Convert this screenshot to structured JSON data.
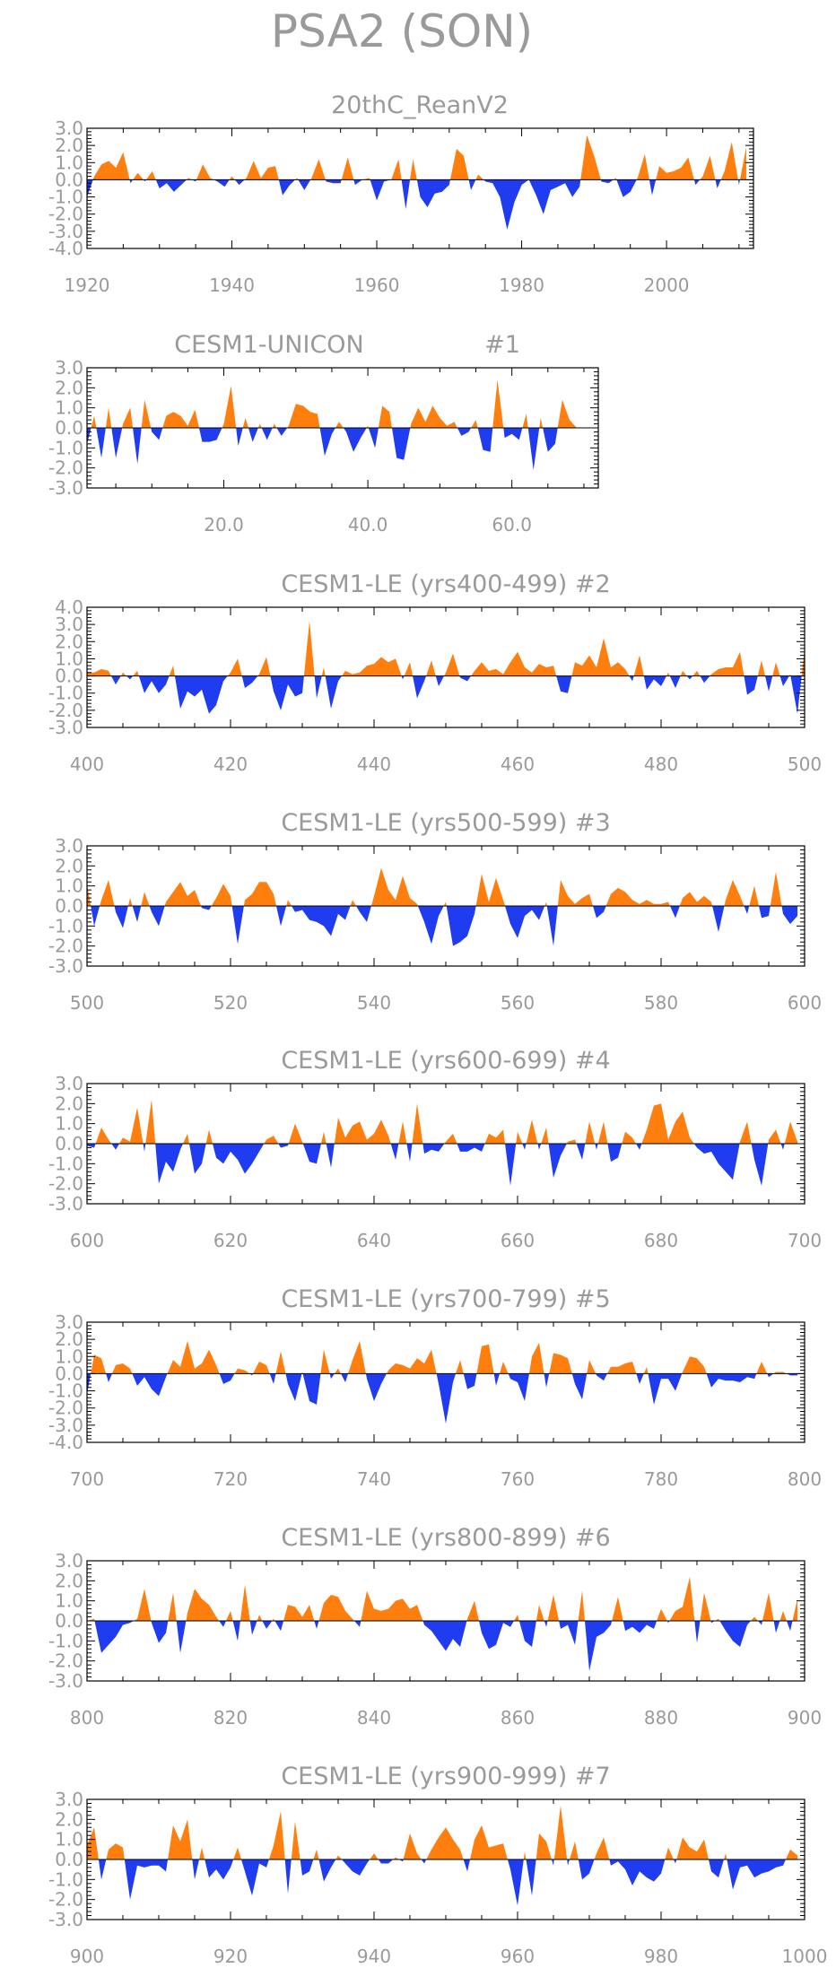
{
  "main_title": "PSA2 (SON)",
  "colors": {
    "positive": "#ff7f0e",
    "negative": "#1f3cf0",
    "text": "#9a9a9a",
    "axis": "#000000"
  },
  "chart_data": [
    {
      "type": "area",
      "title": "20thC_ReanV2",
      "xlim": [
        1920,
        2012
      ],
      "ylim": [
        -4,
        3
      ],
      "yticks": [
        3,
        2,
        1,
        0,
        -1,
        -2,
        -3,
        -4
      ],
      "ytick_labels": [
        "3.0",
        "2.0",
        "1.0",
        "0.0",
        "-1.0",
        "-2.0",
        "-3.0",
        "-4.0"
      ],
      "xticks": [
        1920,
        1940,
        1960,
        1980,
        2000
      ],
      "xtick_labels": [
        "1920",
        "1940",
        "1960",
        "1980",
        "2000"
      ],
      "x_start": 1920,
      "values": [
        -1.0,
        0.2,
        0.9,
        1.1,
        0.7,
        1.6,
        -0.2,
        0.4,
        -0.1,
        0.5,
        -0.5,
        -0.2,
        -0.7,
        -0.3,
        0.1,
        -0.1,
        0.9,
        0.1,
        -0.1,
        -0.4,
        0.2,
        -0.3,
        0.1,
        1.1,
        0.1,
        0.7,
        0.8,
        -0.9,
        -0.3,
        0.1,
        -0.6,
        0.1,
        1.2,
        -0.1,
        -0.2,
        -0.2,
        1.3,
        -0.3,
        0.0,
        0.1,
        -1.2,
        -0.1,
        0.0,
        1.2,
        -1.7,
        1.2,
        -1.0,
        -1.6,
        -0.8,
        -0.7,
        -0.3,
        1.8,
        1.4,
        -0.6,
        0.3,
        -0.1,
        -0.2,
        -1.0,
        -2.9,
        -1.3,
        -0.3,
        0.0,
        -0.9,
        -2.0,
        -0.6,
        -0.4,
        -0.2,
        -1.0,
        -0.4,
        2.6,
        1.4,
        -0.1,
        -0.2,
        0.1,
        -1.0,
        -0.7,
        0.1,
        1.5,
        -0.9,
        0.8,
        0.4,
        0.5,
        0.7,
        1.3,
        -0.3,
        0.2,
        1.4,
        -0.5,
        0.5,
        2.2,
        -0.3,
        1.9
      ]
    },
    {
      "type": "area",
      "title": "CESM1-UNICON",
      "tag": "#1",
      "xlim": [
        1,
        72
      ],
      "ylim": [
        -3,
        3
      ],
      "yticks": [
        3,
        2,
        1,
        0,
        -1,
        -2,
        -3
      ],
      "ytick_labels": [
        "3.0",
        "2.0",
        "1.0",
        "0.0",
        "-1.0",
        "-2.0",
        "-3.0"
      ],
      "xticks": [
        20,
        40,
        60
      ],
      "xtick_labels": [
        "20.0",
        "40.0",
        "60.0"
      ],
      "x_start": 1,
      "values": [
        -0.8,
        0.6,
        -1.5,
        1.0,
        -1.5,
        0.2,
        1.0,
        -1.8,
        1.4,
        -0.2,
        -0.6,
        0.6,
        0.8,
        0.6,
        0.1,
        0.9,
        -0.7,
        -0.7,
        -0.6,
        0.2,
        2.1,
        -0.9,
        0.5,
        -0.7,
        0.2,
        -0.6,
        0.2,
        -0.4,
        0.1,
        1.2,
        1.1,
        0.8,
        0.7,
        -1.4,
        -0.3,
        0.3,
        -0.2,
        -1.2,
        -0.5,
        0.1,
        -1.0,
        1.1,
        0.8,
        -1.5,
        -1.6,
        0.2,
        1.0,
        0.3,
        1.1,
        0.5,
        0.1,
        0.3,
        -0.4,
        -0.2,
        0.4,
        -1.1,
        -1.2,
        2.4,
        -0.5,
        -0.3,
        -0.6,
        0.7,
        -2.1,
        0.5,
        -1.2,
        -0.8,
        1.4,
        0.4,
        0.0,
        0.0
      ]
    },
    {
      "type": "area",
      "title": "CESM1-LE (yrs400-499) #2",
      "xlim": [
        400,
        500
      ],
      "ylim": [
        -3,
        4
      ],
      "yticks": [
        4,
        3,
        2,
        1,
        0,
        -1,
        -2,
        -3
      ],
      "ytick_labels": [
        "4.0",
        "3.0",
        "2.0",
        "1.0",
        "0.0",
        "-1.0",
        "-2.0",
        "-3.0"
      ],
      "xticks": [
        400,
        420,
        440,
        460,
        480,
        500
      ],
      "xtick_labels": [
        "400",
        "420",
        "440",
        "460",
        "480",
        "500"
      ],
      "x_start": 400,
      "values": [
        0.2,
        0.2,
        0.4,
        0.3,
        -0.5,
        0.2,
        -0.2,
        0.3,
        -1.0,
        -0.3,
        -1.0,
        -0.5,
        0.6,
        -1.9,
        -0.9,
        -1.2,
        -0.8,
        -2.2,
        -1.7,
        -0.3,
        0.2,
        1.0,
        -0.7,
        -0.4,
        0.1,
        1.1,
        -0.9,
        -2.0,
        -0.5,
        -1.2,
        -1.0,
        3.2,
        -1.3,
        0.5,
        -1.9,
        -0.3,
        0.3,
        0.1,
        0.2,
        0.6,
        0.7,
        1.1,
        0.8,
        1.0,
        -0.2,
        0.8,
        -1.3,
        -0.3,
        0.9,
        -0.6,
        0.2,
        1.3,
        -0.1,
        -0.3,
        0.3,
        0.8,
        0.3,
        0.4,
        0.1,
        0.8,
        1.4,
        0.5,
        0.2,
        0.7,
        0.5,
        0.6,
        -0.9,
        -1.0,
        0.8,
        0.6,
        1.2,
        0.5,
        2.2,
        0.5,
        0.8,
        0.4,
        -0.3,
        1.2,
        -0.8,
        -0.2,
        -0.6,
        0.2,
        -0.7,
        0.3,
        -0.2,
        0.3,
        -0.4,
        0.1,
        0.4,
        0.5,
        0.5,
        1.4,
        -1.1,
        -0.8,
        0.9,
        -0.9,
        0.8,
        -0.6,
        0.1,
        -2.2,
        1.6
      ]
    },
    {
      "type": "area",
      "title": "CESM1-LE (yrs500-599) #3",
      "xlim": [
        500,
        600
      ],
      "ylim": [
        -3,
        3
      ],
      "yticks": [
        3,
        2,
        1,
        0,
        -1,
        -2,
        -3
      ],
      "ytick_labels": [
        "3.0",
        "2.0",
        "1.0",
        "0.0",
        "-1.0",
        "-2.0",
        "-3.0"
      ],
      "xticks": [
        500,
        520,
        540,
        560,
        580,
        600
      ],
      "xtick_labels": [
        "500",
        "520",
        "540",
        "560",
        "580",
        "600"
      ],
      "x_start": 500,
      "values": [
        1.1,
        -1.0,
        0.3,
        1.3,
        -0.3,
        -1.1,
        0.4,
        -0.8,
        0.7,
        -0.3,
        -1.0,
        0.2,
        0.7,
        1.2,
        0.5,
        0.8,
        -0.1,
        -0.2,
        0.4,
        1.1,
        0.5,
        -1.9,
        0.3,
        0.6,
        1.2,
        1.2,
        0.6,
        -1.0,
        0.3,
        -0.3,
        -0.2,
        -0.7,
        -0.8,
        -1.0,
        -1.5,
        -0.4,
        -0.7,
        0.3,
        -0.3,
        -0.8,
        0.5,
        1.9,
        0.8,
        0.3,
        1.5,
        0.4,
        0.1,
        -0.8,
        -1.9,
        -0.5,
        0.2,
        -2.0,
        -1.8,
        -1.5,
        -0.4,
        1.6,
        0.2,
        1.4,
        0.3,
        -0.9,
        -1.6,
        -0.5,
        -0.2,
        -0.7,
        0.2,
        -2.0,
        1.3,
        0.5,
        0.1,
        0.4,
        0.6,
        -0.6,
        -0.3,
        0.6,
        0.9,
        0.7,
        0.3,
        0.1,
        0.3,
        0.1,
        0.1,
        0.2,
        -0.6,
        0.4,
        0.7,
        0.2,
        0.5,
        0.2,
        -1.3,
        0.3,
        1.3,
        0.5,
        -0.4,
        1.0,
        -0.6,
        -0.5,
        1.7,
        -0.4,
        -0.9,
        -0.5
      ]
    },
    {
      "type": "area",
      "title": "CESM1-LE (yrs600-699) #4",
      "xlim": [
        600,
        700
      ],
      "ylim": [
        -3,
        3
      ],
      "yticks": [
        3,
        2,
        1,
        0,
        -1,
        -2,
        -3
      ],
      "ytick_labels": [
        "3.0",
        "2.0",
        "1.0",
        "0.0",
        "-1.0",
        "-2.0",
        "-3.0"
      ],
      "xticks": [
        600,
        620,
        640,
        660,
        680,
        700
      ],
      "xtick_labels": [
        "600",
        "620",
        "640",
        "660",
        "680",
        "700"
      ],
      "x_start": 600,
      "values": [
        -0.1,
        -0.2,
        0.8,
        0.2,
        -0.3,
        0.3,
        0.1,
        1.8,
        -0.4,
        2.2,
        -2.0,
        -0.9,
        -1.4,
        -0.3,
        0.5,
        -1.5,
        -1.0,
        0.7,
        -0.7,
        -1.0,
        -0.4,
        -0.8,
        -1.5,
        -1.0,
        -0.4,
        0.2,
        0.4,
        -0.2,
        -0.1,
        1.0,
        0.1,
        -0.9,
        -1.0,
        0.6,
        -1.2,
        1.3,
        0.3,
        0.9,
        1.1,
        0.2,
        0.5,
        1.2,
        0.4,
        -0.8,
        1.1,
        -0.9,
        2.0,
        -0.5,
        -0.3,
        -0.4,
        0.1,
        0.5,
        -0.4,
        -0.4,
        -0.2,
        -0.4,
        0.5,
        0.3,
        0.7,
        -2.1,
        0.6,
        -0.3,
        1.2,
        -0.3,
        0.8,
        -1.7,
        -0.6,
        0.1,
        0.2,
        -0.8,
        1.1,
        -0.3,
        1.1,
        -0.9,
        -0.7,
        0.6,
        0.3,
        -0.3,
        0.7,
        1.9,
        2.0,
        0.2,
        1.1,
        1.6,
        0.3,
        -0.2,
        -0.5,
        -0.4,
        -1.0,
        -1.4,
        -1.8,
        0.1,
        1.1,
        -0.8,
        -2.1,
        0.2,
        0.7,
        -0.3,
        1.1,
        0.1
      ]
    },
    {
      "type": "area",
      "title": "CESM1-LE (yrs700-799) #5",
      "xlim": [
        700,
        800
      ],
      "ylim": [
        -4,
        3
      ],
      "yticks": [
        3,
        2,
        1,
        0,
        -1,
        -2,
        -3,
        -4
      ],
      "ytick_labels": [
        "3.0",
        "2.0",
        "1.0",
        "0.0",
        "-1.0",
        "-2.0",
        "-3.0",
        "-4.0"
      ],
      "xticks": [
        700,
        720,
        740,
        760,
        780,
        800
      ],
      "xtick_labels": [
        "700",
        "720",
        "740",
        "760",
        "780",
        "800"
      ],
      "x_start": 700,
      "values": [
        -1.2,
        1.1,
        0.9,
        -0.5,
        0.5,
        0.6,
        0.3,
        -0.7,
        -0.2,
        -0.9,
        -1.3,
        -0.2,
        0.8,
        0.4,
        1.9,
        0.3,
        0.6,
        1.4,
        0.5,
        -0.6,
        -0.4,
        0.3,
        0.2,
        -0.1,
        0.7,
        0.5,
        -0.6,
        1.3,
        -0.6,
        -1.6,
        0.1,
        -1.6,
        -1.8,
        1.4,
        -0.3,
        0.3,
        -0.5,
        0.8,
        1.9,
        -0.3,
        -1.6,
        -0.6,
        0.2,
        0.6,
        0.5,
        0.3,
        0.9,
        0.6,
        1.4,
        -0.6,
        -2.9,
        -0.5,
        0.8,
        -0.9,
        -0.7,
        1.6,
        1.7,
        -0.7,
        0.7,
        -0.3,
        -0.5,
        -1.6,
        1.0,
        1.8,
        -0.8,
        1.2,
        1.1,
        0.9,
        -0.6,
        -1.5,
        0.8,
        -0.1,
        -0.4,
        0.4,
        0.4,
        0.6,
        0.7,
        -0.6,
        0.4,
        -1.8,
        -0.3,
        -0.3,
        -1.0,
        0.1,
        1.0,
        0.9,
        0.4,
        -0.8,
        -0.3,
        -0.4,
        -0.4,
        -0.5,
        -0.2,
        -0.3,
        0.7,
        -0.2,
        0.1,
        0.1,
        -0.1,
        -0.1
      ]
    },
    {
      "type": "area",
      "title": "CESM1-LE (yrs800-899) #6",
      "xlim": [
        800,
        900
      ],
      "ylim": [
        -3,
        3
      ],
      "yticks": [
        3,
        2,
        1,
        0,
        -1,
        -2,
        -3
      ],
      "ytick_labels": [
        "3.0",
        "2.0",
        "1.0",
        "0.0",
        "-1.0",
        "-2.0",
        "-3.0"
      ],
      "xticks": [
        800,
        820,
        840,
        860,
        880,
        900
      ],
      "xtick_labels": [
        "800",
        "820",
        "840",
        "860",
        "880",
        "900"
      ],
      "x_start": 800,
      "values": [
        0.0,
        0.1,
        -1.6,
        -1.2,
        -0.8,
        -0.2,
        -0.1,
        0.1,
        1.6,
        -0.1,
        -1.1,
        -0.6,
        1.4,
        -1.6,
        0.4,
        1.6,
        1.1,
        0.8,
        0.2,
        -0.3,
        0.5,
        -1.0,
        1.8,
        -0.7,
        0.3,
        -0.4,
        0.1,
        -0.5,
        0.8,
        0.7,
        0.2,
        0.8,
        -0.4,
        0.9,
        1.3,
        1.2,
        0.5,
        0.1,
        -0.3,
        1.5,
        0.6,
        0.5,
        0.6,
        1.0,
        1.1,
        0.6,
        0.8,
        -0.2,
        -0.5,
        -1.0,
        -1.5,
        -0.9,
        -1.3,
        0.1,
        1.0,
        -0.6,
        -1.4,
        -1.2,
        -0.1,
        -0.3,
        0.3,
        -1.0,
        -1.3,
        0.8,
        -0.3,
        1.3,
        -0.4,
        -0.2,
        -1.2,
        1.5,
        -2.5,
        -0.8,
        -0.6,
        -0.2,
        1.2,
        -0.5,
        -0.3,
        -0.6,
        -0.2,
        -0.4,
        0.6,
        -0.1,
        0.5,
        0.7,
        2.2,
        -1.1,
        1.4,
        -0.1,
        0.1,
        -0.5,
        -1.0,
        -1.3,
        -0.2,
        0.2,
        -0.2,
        1.4,
        -0.6,
        0.5,
        -0.5,
        1.1
      ]
    },
    {
      "type": "area",
      "title": "CESM1-LE (yrs900-999) #7",
      "xlim": [
        900,
        1000
      ],
      "ylim": [
        -3,
        3
      ],
      "yticks": [
        3,
        2,
        1,
        0,
        -1,
        -2,
        -3
      ],
      "ytick_labels": [
        "3.0",
        "2.0",
        "1.0",
        "0.0",
        "-1.0",
        "-2.0",
        "-3.0"
      ],
      "xticks": [
        900,
        920,
        940,
        960,
        980,
        1000
      ],
      "xtick_labels": [
        "900",
        "920",
        "940",
        "960",
        "980",
        "1000"
      ],
      "x_start": 900,
      "values": [
        0.7,
        1.6,
        -1.0,
        0.5,
        0.8,
        0.6,
        -2.0,
        -0.3,
        -0.4,
        -0.3,
        -0.3,
        -0.6,
        1.7,
        0.9,
        2.0,
        -1.0,
        0.6,
        -0.9,
        -0.5,
        -1.0,
        -0.4,
        0.6,
        -0.6,
        -1.8,
        -0.2,
        -0.4,
        0.7,
        2.4,
        -1.7,
        1.9,
        -0.8,
        -0.6,
        0.5,
        -1.1,
        -0.4,
        0.2,
        -0.2,
        -0.6,
        -0.8,
        -0.2,
        0.3,
        -0.2,
        -0.2,
        0.1,
        -0.1,
        1.3,
        0.3,
        -0.2,
        0.5,
        1.1,
        1.6,
        1.0,
        0.5,
        -0.6,
        1.0,
        1.7,
        0.6,
        0.7,
        0.8,
        -0.5,
        -2.3,
        0.4,
        -1.8,
        1.3,
        0.9,
        -0.3,
        2.7,
        -0.3,
        0.9,
        -1.0,
        -0.7,
        0.3,
        1.1,
        -0.3,
        -0.1,
        -0.5,
        -1.3,
        -0.6,
        -0.9,
        -1.1,
        -0.7,
        0.6,
        -0.2,
        1.1,
        0.6,
        0.4,
        1.0,
        -0.6,
        -0.9,
        0.3,
        -1.5,
        -0.4,
        -0.3,
        -0.9,
        -0.7,
        -0.6,
        -0.4,
        -0.3,
        0.5,
        0.2
      ]
    }
  ]
}
